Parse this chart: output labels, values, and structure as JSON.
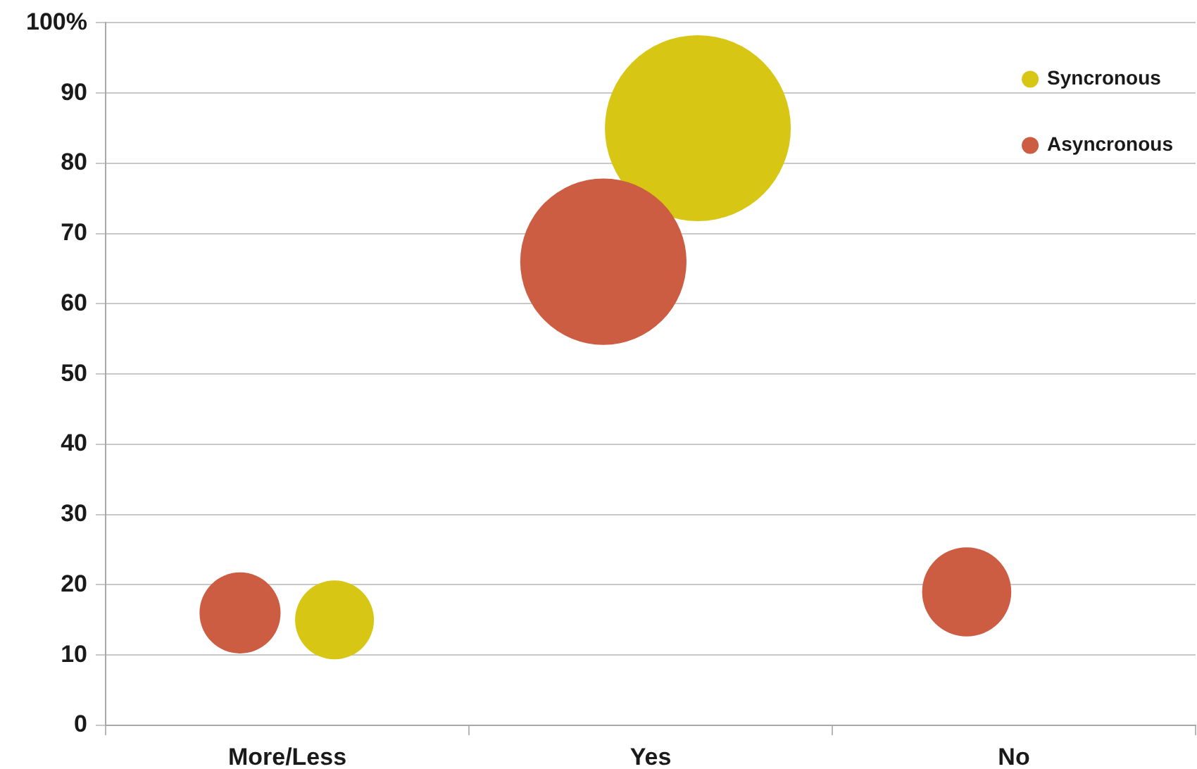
{
  "chart_data": {
    "type": "bubble",
    "categories": [
      "More/Less",
      "Yes",
      "No"
    ],
    "series": [
      {
        "name": "Syncronous",
        "color": "#d8c614",
        "values": [
          15,
          85,
          null
        ],
        "sizes": [
          0.18,
          1,
          null
        ]
      },
      {
        "name": "Asyncronous",
        "color": "#cc5c42",
        "values": [
          16,
          66,
          19
        ],
        "sizes": [
          0.19,
          0.8,
          0.23
        ]
      }
    ],
    "ylim": [
      0,
      100
    ],
    "yticks": [
      0,
      10,
      20,
      30,
      40,
      50,
      60,
      70,
      80,
      90,
      {
        "value": 100,
        "label": "100%"
      }
    ],
    "grid": "y",
    "legend": "top right"
  }
}
